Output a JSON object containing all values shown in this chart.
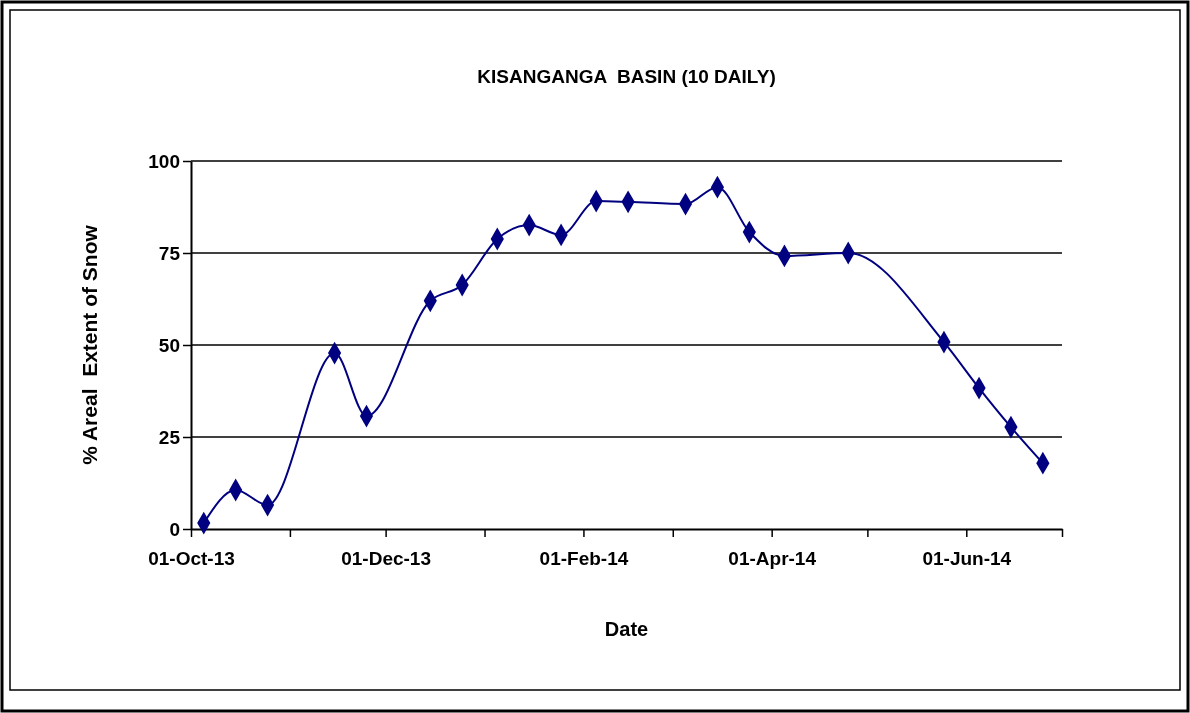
{
  "chart_data": {
    "type": "line",
    "title": "KISANGANGA  BASIN (10 DAILY)",
    "xlabel": "Date",
    "ylabel": "% Areal  Extent of Snow",
    "x": [
      "2013-10-05",
      "2013-10-15",
      "2013-10-25",
      "2013-11-15",
      "2013-11-25",
      "2013-12-15",
      "2013-12-25",
      "2014-01-05",
      "2014-01-15",
      "2014-01-25",
      "2014-02-05",
      "2014-02-15",
      "2014-03-05",
      "2014-03-15",
      "2014-03-25",
      "2014-04-05",
      "2014-04-25",
      "2014-05-25",
      "2014-06-05",
      "2014-06-15",
      "2014-06-25"
    ],
    "series": [
      {
        "color": "#000080",
        "values": [
          1.6,
          10.6,
          6.5,
          47.8,
          30.7,
          62,
          66.3,
          78.8,
          82.6,
          79.9,
          89.1,
          88.9,
          88.3,
          92.9,
          80.7,
          74.2,
          75,
          50.8,
          38.3,
          27.7,
          17.9
        ]
      }
    ],
    "xlim": [
      "2013-10-01",
      "2014-07-01"
    ],
    "xticks": [
      {
        "value": "2013-10-01",
        "label": "01-Oct-13"
      },
      {
        "value": "2013-11-01",
        "label": null
      },
      {
        "value": "2013-12-01",
        "label": "01-Dec-13"
      },
      {
        "value": "2014-01-01",
        "label": null
      },
      {
        "value": "2014-02-01",
        "label": "01-Feb-14"
      },
      {
        "value": "2014-03-01",
        "label": null
      },
      {
        "value": "2014-04-01",
        "label": "01-Apr-14"
      },
      {
        "value": "2014-05-01",
        "label": null
      },
      {
        "value": "2014-06-01",
        "label": "01-Jun-14"
      },
      {
        "value": "2014-07-01",
        "label": null
      }
    ],
    "ylim": [
      0,
      100
    ],
    "yticks": [
      0,
      25,
      50,
      75,
      100
    ],
    "grid": "y",
    "marker": "diamond",
    "line_style": "solid"
  }
}
